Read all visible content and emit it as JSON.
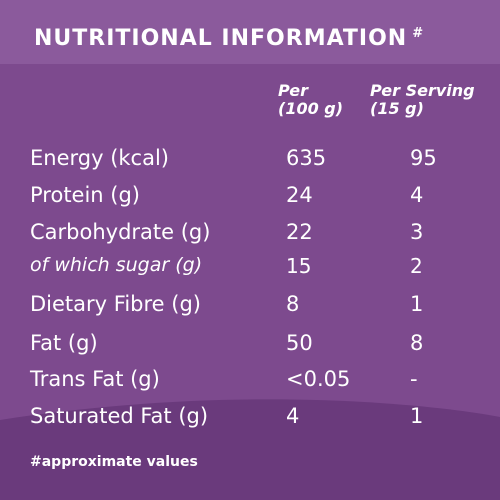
{
  "header": {
    "title": "NUTRITIONAL INFORMATION",
    "title_mark": "#"
  },
  "columns": {
    "per100_line1": "Per",
    "per100_line2": "(100 g)",
    "serving_line1": "Per Serving",
    "serving_line2": "(15 g)"
  },
  "rows": [
    {
      "label": "Energy (kcal)",
      "per100": "635",
      "serving": "95"
    },
    {
      "label": "Protein (g)",
      "per100": "24",
      "serving": "4"
    },
    {
      "label": "Carbohydrate (g)",
      "per100": "22",
      "serving": "3"
    },
    {
      "label": "of which sugar (g)",
      "per100": "15",
      "serving": "2"
    },
    {
      "label": "Dietary Fibre (g)",
      "per100": "8",
      "serving": "1"
    },
    {
      "label": "Fat (g)",
      "per100": "50",
      "serving": "8"
    },
    {
      "label": "Trans Fat (g)",
      "per100": "<0.05",
      "serving": "-"
    },
    {
      "label": "Saturated Fat (g)",
      "per100": "4",
      "serving": "1"
    }
  ],
  "footnote": "#approximate values",
  "colors": {
    "background": "#7d4a8e",
    "header_band": "#8b5a9c",
    "wave": "#6a3a7c",
    "text": "#ffffff"
  }
}
